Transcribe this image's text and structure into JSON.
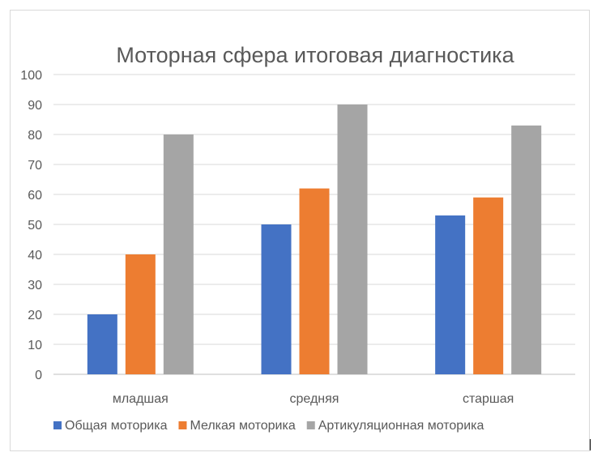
{
  "chart_data": {
    "type": "bar",
    "title": "Моторная сфера итоговая диагностика",
    "xlabel": "",
    "ylabel": "",
    "ylim": [
      0,
      100
    ],
    "yticks": [
      "0",
      "10",
      "20",
      "30",
      "40",
      "50",
      "60",
      "70",
      "80",
      "90",
      "100"
    ],
    "categories": [
      "младшая",
      "средняя",
      "старшая"
    ],
    "series": [
      {
        "name": "Общая моторика",
        "color": "#4472c4",
        "values": [
          20,
          50,
          53
        ]
      },
      {
        "name": "Мелкая моторика",
        "color": "#ed7d31",
        "values": [
          40,
          62,
          59
        ]
      },
      {
        "name": "Артикуляционная моторика",
        "color": "#a5a5a5",
        "values": [
          80,
          90,
          83
        ]
      }
    ],
    "grid": true,
    "legend_position": "bottom"
  }
}
